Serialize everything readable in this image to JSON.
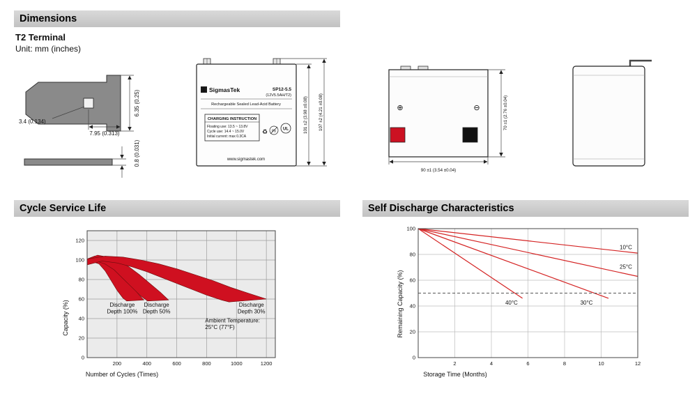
{
  "sections": {
    "dimensions": "Dimensions",
    "cycle_service_life": "Cycle Service Life",
    "self_discharge": "Self Discharge Characteristics"
  },
  "subtitle": "T2 Terminal",
  "unit_note": "Unit: mm (inches)",
  "terminal_drawing": {
    "dim_width": "6.35 (0.25)",
    "dim_hole": "3.4 (0.134)",
    "dim_length": "7.95 (0.313)",
    "dim_thickness": "0.8 (0.031)"
  },
  "front_view": {
    "logo_letter": "S",
    "brand": "SigmasTek",
    "model": "SP12-5.5",
    "rating": "(12V5.5AH/T2)",
    "battery_type": "Rechargeable Sealed Lead-Acid Battery",
    "charging_title": "CHARGING INSTRUCTION",
    "charging_lines": [
      "Floating use: 13.5 ~ 13.8V",
      "Cycle use: 14.4 ~ 15.0V",
      "Initial current: max 0.3CA"
    ],
    "recycle_mark": "♻",
    "pb_mark": "Pb",
    "ul_mark": "UL",
    "website": "www.sigmastek.com",
    "dim_container_height": "101 ±2 (3.98 ±0.08)",
    "dim_total_height": "107 ±2 (4.21 ±0.08)"
  },
  "side_view": {
    "positive_mark": "⊕",
    "negative_mark": "⊖",
    "dim_height": "70 ±1 (2.76 ±0.04)",
    "dim_width": "90 ±1 (3.54 ±0.04)"
  },
  "colors": {
    "accent_red": "#cf1020",
    "terminal_red": "#cc1122",
    "terminal_black": "#111111",
    "header_gray": "#c9c9c9"
  },
  "chart_data": [
    {
      "type": "area",
      "title": "Cycle Service Life",
      "xlabel": "Number of Cycles (Times)",
      "ylabel": "Capacity (%)",
      "xlim": [
        0,
        1260
      ],
      "ylim": [
        0,
        130
      ],
      "xticks": [
        0,
        200,
        400,
        600,
        800,
        1000,
        1200
      ],
      "yticks": [
        0,
        20,
        40,
        60,
        80,
        100,
        120
      ],
      "grid": true,
      "legend_position": "none",
      "plot_bg": "#ebebeb",
      "grid_color": "#9c9c9c",
      "series_color": "#cf1020",
      "bands": [
        {
          "name": "Discharge Depth 100%",
          "upper": [
            [
              0,
              101
            ],
            [
              50,
              104
            ],
            [
              100,
              103
            ],
            [
              150,
              99
            ],
            [
              200,
              92
            ],
            [
              250,
              83
            ],
            [
              300,
              73
            ],
            [
              350,
              64
            ],
            [
              380,
              59
            ]
          ],
          "lower": [
            [
              0,
              95
            ],
            [
              40,
              98
            ],
            [
              80,
              96
            ],
            [
              120,
              89
            ],
            [
              160,
              79
            ],
            [
              200,
              69
            ],
            [
              240,
              61
            ],
            [
              265,
              58
            ]
          ]
        },
        {
          "name": "Discharge Depth 50%",
          "upper": [
            [
              0,
              101
            ],
            [
              70,
              105
            ],
            [
              140,
              103
            ],
            [
              210,
              99
            ],
            [
              280,
              93
            ],
            [
              350,
              85
            ],
            [
              420,
              76
            ],
            [
              490,
              67
            ],
            [
              545,
              59
            ]
          ],
          "lower": [
            [
              0,
              95
            ],
            [
              60,
              99
            ],
            [
              120,
              96
            ],
            [
              180,
              90
            ],
            [
              240,
              81
            ],
            [
              300,
              72
            ],
            [
              360,
              63
            ],
            [
              405,
              58
            ]
          ]
        },
        {
          "name": "Discharge Depth 30%",
          "upper": [
            [
              0,
              101
            ],
            [
              120,
              104
            ],
            [
              240,
              103
            ],
            [
              360,
              100
            ],
            [
              480,
              96
            ],
            [
              600,
              91
            ],
            [
              720,
              85
            ],
            [
              840,
              79
            ],
            [
              960,
              72
            ],
            [
              1080,
              66
            ],
            [
              1200,
              60
            ]
          ],
          "lower": [
            [
              0,
              95
            ],
            [
              100,
              99
            ],
            [
              200,
              97
            ],
            [
              300,
              93
            ],
            [
              400,
              88
            ],
            [
              500,
              82
            ],
            [
              600,
              76
            ],
            [
              700,
              70
            ],
            [
              800,
              64
            ],
            [
              900,
              59
            ],
            [
              950,
              57
            ]
          ]
        }
      ],
      "annotations": [
        {
          "x": 235,
          "y": 52,
          "lines": [
            "Discharge",
            "Depth 100%"
          ]
        },
        {
          "x": 465,
          "y": 52,
          "lines": [
            "Discharge",
            "Depth 50%"
          ]
        },
        {
          "x": 1100,
          "y": 52,
          "lines": [
            "Discharge",
            "Depth 30%"
          ]
        },
        {
          "x": 790,
          "y": 36,
          "lines": [
            "Ambient Temperature:",
            "25°C (77°F)"
          ],
          "align": "start"
        }
      ]
    },
    {
      "type": "line",
      "title": "Self Discharge Characteristics",
      "xlabel": "Storage Time (Months)",
      "ylabel": "Remaining Capacity (%)",
      "xlim": [
        0,
        12
      ],
      "ylim": [
        0,
        100
      ],
      "xticks": [
        0,
        2,
        4,
        6,
        8,
        10,
        12
      ],
      "yticks": [
        0,
        20,
        40,
        60,
        80,
        100
      ],
      "grid": true,
      "legend_position": "inline-annotations",
      "plot_bg": "#ffffff",
      "grid_color": "#bcbcbc",
      "series_color": "#d42222",
      "series": [
        {
          "name": "10°C",
          "points": [
            [
              0,
              100
            ],
            [
              12,
              81
            ]
          ]
        },
        {
          "name": "25°C",
          "points": [
            [
              0,
              100
            ],
            [
              12,
              63
            ]
          ]
        },
        {
          "name": "30°C",
          "points": [
            [
              0,
              100
            ],
            [
              10.4,
              46
            ]
          ]
        },
        {
          "name": "40°C",
          "points": [
            [
              0,
              100
            ],
            [
              5.7,
              46
            ]
          ]
        }
      ],
      "hline": {
        "y": 50,
        "style": "dashed",
        "color": "#555555"
      },
      "annotations": [
        {
          "x": 11.35,
          "y": 84,
          "lines": [
            "10°C"
          ]
        },
        {
          "x": 11.35,
          "y": 69,
          "lines": [
            "25°C"
          ]
        },
        {
          "x": 5.1,
          "y": 41,
          "lines": [
            "40°C"
          ]
        },
        {
          "x": 9.2,
          "y": 41,
          "lines": [
            "30°C"
          ]
        }
      ]
    }
  ]
}
